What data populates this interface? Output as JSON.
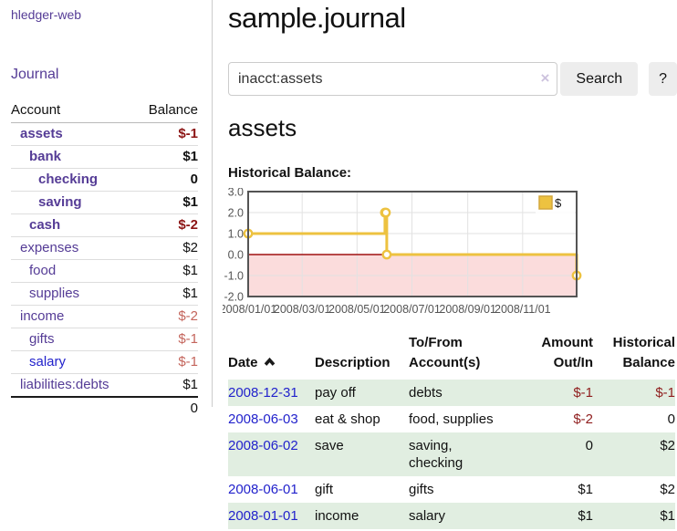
{
  "colors": {
    "accent-purple": "#553c96",
    "link-blue": "#2222cc",
    "negative-strong": "#8c1515",
    "negative-soft": "#c4655c",
    "negative-table": "#8f1d1d",
    "row-green": "#e1eee1",
    "button-gray": "#ededed",
    "chart-yellow": "#edc240"
  },
  "sidebar": {
    "brand": "hledger-web",
    "journal_link": "Journal",
    "accounts_table": {
      "account_header": "Account",
      "balance_header": "Balance",
      "rows": [
        {
          "name": "assets",
          "indent": 0,
          "bold": true,
          "balance": "$-1",
          "negative": true,
          "visited": false
        },
        {
          "name": "bank",
          "indent": 1,
          "bold": true,
          "balance": "$1",
          "negative": false,
          "visited": false
        },
        {
          "name": "checking",
          "indent": 2,
          "bold": true,
          "balance": "0",
          "negative": false,
          "visited": false
        },
        {
          "name": "saving",
          "indent": 2,
          "bold": true,
          "balance": "$1",
          "negative": false,
          "visited": false
        },
        {
          "name": "cash",
          "indent": 1,
          "bold": true,
          "balance": "$-2",
          "negative": true,
          "visited": false
        },
        {
          "name": "expenses",
          "indent": 0,
          "bold": false,
          "balance": "$2",
          "negative": false,
          "visited": false
        },
        {
          "name": "food",
          "indent": 1,
          "bold": false,
          "balance": "$1",
          "negative": false,
          "visited": false
        },
        {
          "name": "supplies",
          "indent": 1,
          "bold": false,
          "balance": "$1",
          "negative": false,
          "visited": false
        },
        {
          "name": "income",
          "indent": 0,
          "bold": false,
          "balance": "$-2",
          "negative": true,
          "visited": false
        },
        {
          "name": "gifts",
          "indent": 1,
          "bold": false,
          "balance": "$-1",
          "negative": true,
          "visited": false
        },
        {
          "name": "salary",
          "indent": 1,
          "bold": false,
          "balance": "$-1",
          "negative": true,
          "visited": true
        },
        {
          "name": "liabilities:debts",
          "indent": 0,
          "bold": false,
          "balance": "$1",
          "negative": false,
          "visited": false
        }
      ],
      "total": "0"
    }
  },
  "main": {
    "title": "sample.journal",
    "search": {
      "query": "inacct:assets",
      "clear_icon": "×",
      "search_button": "Search",
      "help_button": "?"
    },
    "account_heading": "assets",
    "chart_heading": "Historical Balance:"
  },
  "chart_data": {
    "type": "line",
    "line_style": "step",
    "title": "Historical Balance:",
    "series": [
      {
        "name": "$",
        "color": "#edc240",
        "points": [
          {
            "date": "2008-01-01",
            "days": 0,
            "y": 1
          },
          {
            "date": "2008-06-01",
            "days": 152,
            "y": 2
          },
          {
            "date": "2008-06-02",
            "days": 153,
            "y": 2
          },
          {
            "date": "2008-06-03",
            "days": 154,
            "y": 0
          },
          {
            "date": "2008-12-31",
            "days": 365,
            "y": -1
          }
        ]
      }
    ],
    "x_ticks": [
      {
        "label": "2008/01/01",
        "days": 0
      },
      {
        "label": "2008/03/01",
        "days": 60
      },
      {
        "label": "2008/05/01",
        "days": 121
      },
      {
        "label": "2008/07/01",
        "days": 182
      },
      {
        "label": "2008/09/01",
        "days": 244
      },
      {
        "label": "2008/11/01",
        "days": 305
      }
    ],
    "x_range_days": 365,
    "y_ticks": [
      3,
      2,
      1,
      0,
      -1,
      -2
    ],
    "ylim": [
      -2,
      3
    ],
    "legend": {
      "label": "$",
      "position": "top-right",
      "swatch_color": "#edc240",
      "swatch_border": "#d3a73c"
    },
    "grid": {
      "grid_on": true,
      "grid_color": "#e2e2e2",
      "border_color": "#545454",
      "zero_line_color": "#a01010",
      "negative_region_color": "#fbdcdc",
      "tick_label_color": "#545454"
    }
  },
  "register_table": {
    "headers": {
      "date": "Date",
      "description": "Description",
      "account": "To/From Account(s)",
      "amount": "Amount Out/In",
      "balance": "Historical Balance"
    },
    "rows": [
      {
        "date": "2008-12-31",
        "description": "pay off",
        "accounts": "debts",
        "amount": "$-1",
        "amount_negative": true,
        "balance": "$-1",
        "balance_negative": true
      },
      {
        "date": "2008-06-03",
        "description": "eat & shop",
        "accounts": "food, supplies",
        "amount": "$-2",
        "amount_negative": true,
        "balance": "0",
        "balance_negative": false
      },
      {
        "date": "2008-06-02",
        "description": "save",
        "accounts": "saving, checking",
        "amount": "0",
        "amount_negative": false,
        "balance": "$2",
        "balance_negative": false
      },
      {
        "date": "2008-06-01",
        "description": "gift",
        "accounts": "gifts",
        "amount": "$1",
        "amount_negative": false,
        "balance": "$2",
        "balance_negative": false
      },
      {
        "date": "2008-01-01",
        "description": "income",
        "accounts": "salary",
        "amount": "$1",
        "amount_negative": false,
        "balance": "$1",
        "balance_negative": false
      }
    ]
  }
}
